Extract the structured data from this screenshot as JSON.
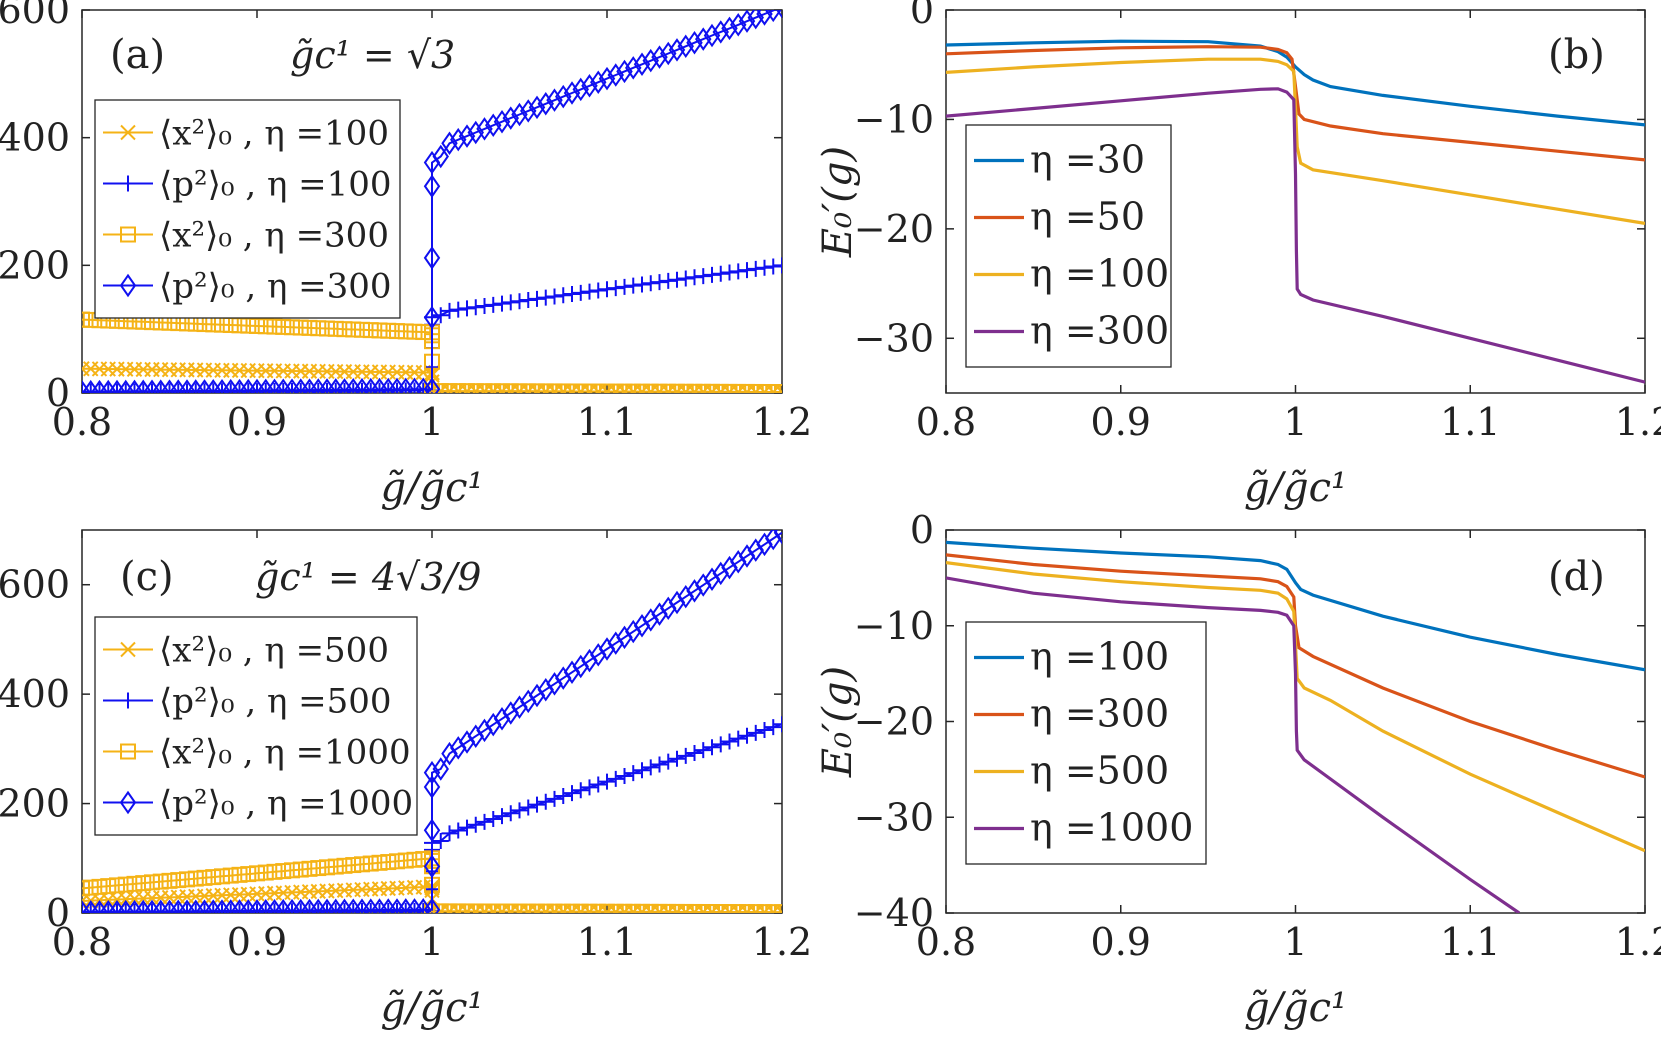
{
  "figure": "2x2 panel figure",
  "chart_data": [
    {
      "id": "a",
      "type": "line",
      "panel_label": "(a)",
      "annotation": "g̃c¹ = √3",
      "xlabel": "g̃/g̃c¹",
      "ylabel": "",
      "xlim": [
        0.8,
        1.2
      ],
      "ylim": [
        0,
        600
      ],
      "xticks": [
        0.8,
        0.9,
        1.0,
        1.1,
        1.2
      ],
      "xtick_labels": [
        "0.8",
        "0.9",
        "1",
        "1.1",
        "1.2"
      ],
      "yticks": [
        0,
        200,
        400,
        600
      ],
      "ytick_labels": [
        "0",
        "200",
        "400",
        "600"
      ],
      "legend_position": "upper-left",
      "legend_style": "a",
      "series": [
        {
          "name": "⟨x²⟩₀ , η =100",
          "color": "#F5B316",
          "marker": "x",
          "side": "x2",
          "pre": {
            "a": 38,
            "b": 32
          },
          "post": {
            "a": 3,
            "b": 1.5
          }
        },
        {
          "name": "⟨p²⟩₀ , η =100",
          "color": "#1010F0",
          "marker": "+",
          "side": "p2",
          "pre": {
            "a": 2,
            "b": 4
          },
          "post": {
            "a": 125,
            "b": 200
          }
        },
        {
          "name": "⟨x²⟩₀ , η =300",
          "color": "#F5B316",
          "marker": "square",
          "side": "x2",
          "pre": {
            "a": 115,
            "b": 95
          },
          "post": {
            "a": 3,
            "b": 1.5
          }
        },
        {
          "name": "⟨p²⟩₀ , η =300",
          "color": "#1010F0",
          "marker": "diamond",
          "side": "p2",
          "pre": {
            "a": 2,
            "b": 6
          },
          "post": {
            "a": 380,
            "b": 605
          }
        }
      ]
    },
    {
      "id": "b",
      "type": "line",
      "panel_label": "(b)",
      "xlabel": "g̃/g̃c¹",
      "ylabel": "E₀′(g)",
      "xlim": [
        0.8,
        1.2
      ],
      "ylim": [
        -35,
        0
      ],
      "xticks": [
        0.8,
        0.9,
        1.0,
        1.1,
        1.2
      ],
      "xtick_labels": [
        "0.8",
        "0.9",
        "1",
        "1.1",
        "1.2"
      ],
      "yticks": [
        0,
        -10,
        -20,
        -30
      ],
      "ytick_labels": [
        "0",
        "−10",
        "−20",
        "−30"
      ],
      "legend_position": "lower-left",
      "series": [
        {
          "name": "η =30",
          "color": "#0072BD",
          "points": [
            [
              0.8,
              -3.2
            ],
            [
              0.85,
              -3.0
            ],
            [
              0.9,
              -2.85
            ],
            [
              0.95,
              -2.9
            ],
            [
              0.98,
              -3.3
            ],
            [
              0.99,
              -3.8
            ],
            [
              0.995,
              -4.3
            ],
            [
              1.0,
              -5.2
            ],
            [
              1.005,
              -5.9
            ],
            [
              1.01,
              -6.4
            ],
            [
              1.02,
              -7.0
            ],
            [
              1.05,
              -7.8
            ],
            [
              1.1,
              -8.8
            ],
            [
              1.15,
              -9.7
            ],
            [
              1.2,
              -10.5
            ]
          ]
        },
        {
          "name": "η =50",
          "color": "#D95319",
          "points": [
            [
              0.8,
              -4.0
            ],
            [
              0.85,
              -3.7
            ],
            [
              0.9,
              -3.45
            ],
            [
              0.95,
              -3.35
            ],
            [
              0.98,
              -3.4
            ],
            [
              0.99,
              -3.6
            ],
            [
              0.995,
              -3.9
            ],
            [
              0.998,
              -4.5
            ],
            [
              1.0,
              -7.0
            ],
            [
              1.002,
              -9.5
            ],
            [
              1.005,
              -10.0
            ],
            [
              1.02,
              -10.6
            ],
            [
              1.05,
              -11.3
            ],
            [
              1.1,
              -12.1
            ],
            [
              1.15,
              -12.9
            ],
            [
              1.2,
              -13.7
            ]
          ]
        },
        {
          "name": "η =100",
          "color": "#EDB120",
          "points": [
            [
              0.8,
              -5.7
            ],
            [
              0.85,
              -5.2
            ],
            [
              0.9,
              -4.8
            ],
            [
              0.95,
              -4.5
            ],
            [
              0.98,
              -4.5
            ],
            [
              0.99,
              -4.7
            ],
            [
              0.995,
              -5.0
            ],
            [
              0.999,
              -5.6
            ],
            [
              1.0,
              -9.0
            ],
            [
              1.001,
              -12.5
            ],
            [
              1.003,
              -14.0
            ],
            [
              1.01,
              -14.6
            ],
            [
              1.05,
              -15.6
            ],
            [
              1.1,
              -16.9
            ],
            [
              1.15,
              -18.2
            ],
            [
              1.2,
              -19.5
            ]
          ]
        },
        {
          "name": "η =300",
          "color": "#7E2F8E",
          "points": [
            [
              0.8,
              -9.7
            ],
            [
              0.85,
              -9.0
            ],
            [
              0.9,
              -8.3
            ],
            [
              0.95,
              -7.6
            ],
            [
              0.98,
              -7.25
            ],
            [
              0.99,
              -7.2
            ],
            [
              0.995,
              -7.5
            ],
            [
              0.999,
              -8.2
            ],
            [
              1.0,
              -15.0
            ],
            [
              1.0005,
              -22.0
            ],
            [
              1.001,
              -25.5
            ],
            [
              1.003,
              -26.0
            ],
            [
              1.01,
              -26.5
            ],
            [
              1.05,
              -28.0
            ],
            [
              1.1,
              -30.0
            ],
            [
              1.15,
              -32.0
            ],
            [
              1.2,
              -34.0
            ]
          ]
        }
      ]
    },
    {
      "id": "c",
      "type": "line",
      "panel_label": "(c)",
      "annotation": "g̃c¹ = 4√3/9",
      "xlabel": "g̃/g̃c¹",
      "ylabel": "",
      "xlim": [
        0.8,
        1.2
      ],
      "ylim": [
        0,
        700
      ],
      "xticks": [
        0.8,
        0.9,
        1.0,
        1.1,
        1.2
      ],
      "xtick_labels": [
        "0.8",
        "0.9",
        "1",
        "1.1",
        "1.2"
      ],
      "yticks": [
        0,
        200,
        400,
        600
      ],
      "ytick_labels": [
        "0",
        "200",
        "400",
        "600"
      ],
      "legend_position": "upper-left",
      "legend_style": "c",
      "series": [
        {
          "name": "⟨x²⟩₀ , η =500",
          "color": "#F5B316",
          "marker": "x",
          "side": "x2",
          "pre": {
            "a": 22,
            "b": 48
          },
          "post": {
            "a": 3,
            "b": 1.5
          }
        },
        {
          "name": "⟨p²⟩₀ , η =500",
          "color": "#1010F0",
          "marker": "+",
          "side": "p2",
          "pre": {
            "a": 2,
            "b": 4
          },
          "post": {
            "a": 135,
            "b": 345
          }
        },
        {
          "name": "⟨x²⟩₀ , η =1000",
          "color": "#F5B316",
          "marker": "square",
          "side": "x2",
          "pre": {
            "a": 45,
            "b": 100
          },
          "post": {
            "a": 3,
            "b": 1.5
          }
        },
        {
          "name": "⟨p²⟩₀ , η =1000",
          "color": "#1010F0",
          "marker": "diamond",
          "side": "p2",
          "pre": {
            "a": 2,
            "b": 6
          },
          "post": {
            "a": 270,
            "b": 695
          }
        }
      ]
    },
    {
      "id": "d",
      "type": "line",
      "panel_label": "(d)",
      "xlabel": "g̃/g̃c¹",
      "ylabel": "E₀′(g)",
      "xlim": [
        0.8,
        1.2
      ],
      "ylim": [
        -40,
        0
      ],
      "xticks": [
        0.8,
        0.9,
        1.0,
        1.1,
        1.2
      ],
      "xtick_labels": [
        "0.8",
        "0.9",
        "1",
        "1.1",
        "1.2"
      ],
      "yticks": [
        0,
        -10,
        -20,
        -30,
        -40
      ],
      "ytick_labels": [
        "0",
        "−10",
        "−20",
        "−30",
        "−40"
      ],
      "legend_position": "lower-left",
      "series": [
        {
          "name": "η =100",
          "color": "#0072BD",
          "points": [
            [
              0.8,
              -1.3
            ],
            [
              0.85,
              -1.9
            ],
            [
              0.9,
              -2.4
            ],
            [
              0.95,
              -2.8
            ],
            [
              0.98,
              -3.2
            ],
            [
              0.99,
              -3.6
            ],
            [
              0.995,
              -4.1
            ],
            [
              1.0,
              -5.5
            ],
            [
              1.003,
              -6.2
            ],
            [
              1.01,
              -6.8
            ],
            [
              1.05,
              -9.0
            ],
            [
              1.1,
              -11.2
            ],
            [
              1.15,
              -13.0
            ],
            [
              1.2,
              -14.6
            ]
          ]
        },
        {
          "name": "η =300",
          "color": "#D95319",
          "points": [
            [
              0.8,
              -2.6
            ],
            [
              0.85,
              -3.6
            ],
            [
              0.9,
              -4.3
            ],
            [
              0.95,
              -4.8
            ],
            [
              0.98,
              -5.1
            ],
            [
              0.99,
              -5.4
            ],
            [
              0.995,
              -5.9
            ],
            [
              0.999,
              -7.0
            ],
            [
              1.0,
              -10.0
            ],
            [
              1.002,
              -12.3
            ],
            [
              1.01,
              -13.2
            ],
            [
              1.05,
              -16.5
            ],
            [
              1.1,
              -20.0
            ],
            [
              1.15,
              -23.0
            ],
            [
              1.2,
              -25.8
            ]
          ]
        },
        {
          "name": "η =500",
          "color": "#EDB120",
          "points": [
            [
              0.8,
              -3.4
            ],
            [
              0.85,
              -4.6
            ],
            [
              0.9,
              -5.4
            ],
            [
              0.95,
              -6.0
            ],
            [
              0.98,
              -6.3
            ],
            [
              0.99,
              -6.6
            ],
            [
              0.995,
              -7.2
            ],
            [
              0.999,
              -8.5
            ],
            [
              1.0,
              -12.0
            ],
            [
              1.001,
              -15.5
            ],
            [
              1.005,
              -16.5
            ],
            [
              1.02,
              -17.8
            ],
            [
              1.05,
              -21.0
            ],
            [
              1.1,
              -25.5
            ],
            [
              1.15,
              -29.5
            ],
            [
              1.2,
              -33.5
            ]
          ]
        },
        {
          "name": "η =1000",
          "color": "#7E2F8E",
          "points": [
            [
              0.8,
              -5.0
            ],
            [
              0.85,
              -6.6
            ],
            [
              0.9,
              -7.5
            ],
            [
              0.95,
              -8.1
            ],
            [
              0.98,
              -8.4
            ],
            [
              0.99,
              -8.6
            ],
            [
              0.995,
              -8.9
            ],
            [
              0.999,
              -10.0
            ],
            [
              1.0,
              -15.0
            ],
            [
              1.0005,
              -21.0
            ],
            [
              1.001,
              -23.0
            ],
            [
              1.005,
              -24.0
            ],
            [
              1.02,
              -26.0
            ],
            [
              1.05,
              -30.0
            ],
            [
              1.1,
              -36.5
            ],
            [
              1.128,
              -40.0
            ]
          ]
        }
      ]
    }
  ]
}
